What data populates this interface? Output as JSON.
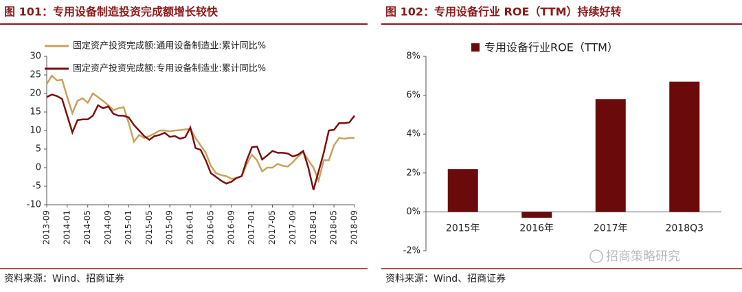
{
  "chart_data": [
    {
      "type": "line",
      "title": "图 101：专用设备制造投资完成额增长较快",
      "source": "资料来源：Wind、招商证券",
      "categories": [
        "2013-09",
        null,
        null,
        null,
        "2014-01",
        null,
        null,
        null,
        "2014-05",
        null,
        null,
        null,
        "2014-09",
        null,
        null,
        null,
        "2015-01",
        null,
        null,
        null,
        "2015-05",
        null,
        null,
        null,
        "2015-09",
        null,
        null,
        null,
        "2016-01",
        null,
        null,
        null,
        "2016-05",
        null,
        null,
        null,
        "2016-09",
        null,
        null,
        null,
        "2017-01",
        null,
        null,
        null,
        "2017-05",
        null,
        null,
        null,
        "2017-09",
        null,
        null,
        null,
        "2018-01",
        null,
        null,
        null,
        "2018-05",
        null,
        null,
        null,
        "2018-09"
      ],
      "series": [
        {
          "name": "固定资产投资完成额:通用设备制造业:累计同比%",
          "color": "#c9a15a",
          "values": [
            22.5,
            24.8,
            23.5,
            23.7,
            19,
            14.7,
            18,
            18.7,
            17.5,
            20,
            19,
            18,
            16.8,
            15.5,
            16,
            16.3,
            12,
            7,
            8.8,
            8,
            8.5,
            9.2,
            10,
            10,
            9.8,
            10,
            10.1,
            10.3,
            10.5,
            8,
            6,
            4,
            0.5,
            -1.5,
            -2,
            -2.3,
            -3,
            -2.8,
            -2.3,
            1,
            3.5,
            2,
            -1,
            0,
            0,
            1,
            0.5,
            0.3,
            1.5,
            3,
            4.2,
            2,
            0,
            -3.5,
            2,
            2,
            6,
            8,
            7.8,
            8,
            8
          ]
        },
        {
          "name": "固定资产投资完成额:专用设备制造业:累计同比%",
          "color": "#7b0f0f",
          "values": [
            19,
            19.7,
            19.3,
            18.5,
            14,
            9.5,
            12.8,
            13,
            13,
            14,
            16.8,
            16,
            16.5,
            14.5,
            14,
            14,
            13.5,
            11.5,
            10,
            8.5,
            7.5,
            8.5,
            8.8,
            9.4,
            8.3,
            8.5,
            7.8,
            8.2,
            10.8,
            5.3,
            4.8,
            2,
            -1.5,
            -2.5,
            -3.5,
            -4.3,
            -3.8,
            -2.8,
            -2.3,
            2,
            5.5,
            5.7,
            2.2,
            3.3,
            4.5,
            4,
            4,
            3.8,
            3,
            3.5,
            4.5,
            0,
            -6,
            -1,
            4,
            10,
            10.2,
            12,
            12,
            12.2,
            14
          ]
        }
      ],
      "ylim": [
        -10,
        30
      ],
      "yticks": [
        -10,
        -5,
        0,
        5,
        10,
        15,
        20,
        25,
        30
      ],
      "grid": false,
      "legend": "top-left"
    },
    {
      "type": "bar",
      "title": "图 102：专用设备行业 ROE（TTM）持续好转",
      "source": "资料来源：Wind、招商证券",
      "categories": [
        "2015年",
        "2016年",
        "2017年",
        "2018Q3"
      ],
      "series": [
        {
          "name": "专用设备行业ROE（TTM）",
          "color": "#6b0a0a",
          "values": [
            2.2,
            -0.3,
            5.8,
            6.7
          ]
        }
      ],
      "ylim": [
        -2,
        8
      ],
      "yticks": [
        {
          "value": -2,
          "label": "-2%"
        },
        {
          "value": 0,
          "label": "0%"
        },
        {
          "value": 2,
          "label": "2%"
        },
        {
          "value": 4,
          "label": "4%"
        },
        {
          "value": 6,
          "label": "6%"
        },
        {
          "value": 8,
          "label": "8%"
        }
      ],
      "grid": false,
      "legend": "top"
    }
  ],
  "watermark": "招商策略研究"
}
